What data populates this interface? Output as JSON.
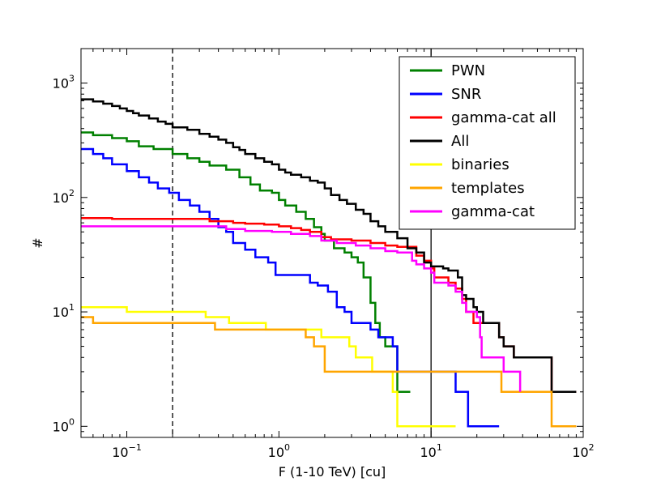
{
  "chart_data": {
    "type": "line",
    "step": true,
    "xscale": "log",
    "yscale": "log",
    "xlabel": "F (1-10 TeV) [cu]",
    "ylabel": "#",
    "xlim": [
      0.05,
      100
    ],
    "ylim": [
      0.8,
      2000
    ],
    "x_ticks": [
      {
        "base": "10",
        "exp": "−1",
        "value": 0.1
      },
      {
        "base": "10",
        "exp": "0",
        "value": 1
      },
      {
        "base": "10",
        "exp": "1",
        "value": 10
      },
      {
        "base": "10",
        "exp": "2",
        "value": 100
      }
    ],
    "y_ticks": [
      {
        "base": "10",
        "exp": "0",
        "value": 1
      },
      {
        "base": "10",
        "exp": "1",
        "value": 10
      },
      {
        "base": "10",
        "exp": "2",
        "value": 100
      },
      {
        "base": "10",
        "exp": "3",
        "value": 1000
      }
    ],
    "vlines": [
      {
        "x": 0.2,
        "style": "dashed",
        "color": "#000000"
      },
      {
        "x": 10,
        "style": "solid",
        "color": "#000000"
      }
    ],
    "legend_position": "top-right",
    "series": [
      {
        "name": "PWN",
        "color": "#008000",
        "points": [
          [
            0.05,
            370
          ],
          [
            0.06,
            350
          ],
          [
            0.08,
            330
          ],
          [
            0.1,
            310
          ],
          [
            0.12,
            280
          ],
          [
            0.15,
            265
          ],
          [
            0.2,
            240
          ],
          [
            0.25,
            220
          ],
          [
            0.3,
            205
          ],
          [
            0.35,
            190
          ],
          [
            0.45,
            175
          ],
          [
            0.55,
            150
          ],
          [
            0.65,
            130
          ],
          [
            0.75,
            115
          ],
          [
            0.9,
            110
          ],
          [
            1.0,
            95
          ],
          [
            1.1,
            85
          ],
          [
            1.3,
            75
          ],
          [
            1.5,
            65
          ],
          [
            1.7,
            55
          ],
          [
            1.9,
            48
          ],
          [
            2.0,
            42
          ],
          [
            2.3,
            36
          ],
          [
            2.7,
            33
          ],
          [
            3.0,
            30
          ],
          [
            3.3,
            27
          ],
          [
            3.6,
            20
          ],
          [
            4.0,
            12
          ],
          [
            4.3,
            8
          ],
          [
            4.6,
            6
          ],
          [
            5.0,
            5
          ],
          [
            5.7,
            5
          ],
          [
            6.0,
            2
          ],
          [
            7.3,
            2
          ]
        ]
      },
      {
        "name": "SNR",
        "color": "#0000ff",
        "points": [
          [
            0.05,
            265
          ],
          [
            0.06,
            240
          ],
          [
            0.07,
            220
          ],
          [
            0.08,
            195
          ],
          [
            0.1,
            170
          ],
          [
            0.12,
            150
          ],
          [
            0.14,
            135
          ],
          [
            0.16,
            120
          ],
          [
            0.19,
            110
          ],
          [
            0.22,
            95
          ],
          [
            0.26,
            85
          ],
          [
            0.3,
            75
          ],
          [
            0.35,
            65
          ],
          [
            0.4,
            55
          ],
          [
            0.45,
            50
          ],
          [
            0.5,
            40
          ],
          [
            0.6,
            35
          ],
          [
            0.7,
            30
          ],
          [
            0.85,
            27
          ],
          [
            0.95,
            21
          ],
          [
            1.6,
            18
          ],
          [
            1.8,
            17
          ],
          [
            2.1,
            15
          ],
          [
            2.4,
            11
          ],
          [
            2.7,
            10
          ],
          [
            3.0,
            8
          ],
          [
            4.0,
            7
          ],
          [
            4.5,
            6
          ],
          [
            5.2,
            6
          ],
          [
            5.6,
            5
          ],
          [
            6.0,
            3
          ],
          [
            14.0,
            3
          ],
          [
            14.5,
            2
          ],
          [
            17.0,
            2
          ],
          [
            17.5,
            1
          ],
          [
            28.0,
            1
          ]
        ]
      },
      {
        "name": "gamma-cat all",
        "color": "#ff0000",
        "points": [
          [
            0.05,
            66
          ],
          [
            0.08,
            65
          ],
          [
            0.2,
            65
          ],
          [
            0.35,
            62
          ],
          [
            0.5,
            60
          ],
          [
            0.6,
            59
          ],
          [
            0.8,
            58
          ],
          [
            1.0,
            56
          ],
          [
            1.2,
            54
          ],
          [
            1.4,
            52
          ],
          [
            1.6,
            50
          ],
          [
            1.9,
            45
          ],
          [
            2.2,
            43
          ],
          [
            3.0,
            42
          ],
          [
            4.0,
            40
          ],
          [
            5.0,
            38
          ],
          [
            6.0,
            37
          ],
          [
            8.0,
            31
          ],
          [
            9.0,
            28
          ],
          [
            10.0,
            24
          ],
          [
            10.5,
            20
          ],
          [
            13.0,
            18
          ],
          [
            14.5,
            16
          ],
          [
            16.0,
            13
          ],
          [
            17.0,
            10
          ],
          [
            19.0,
            8
          ],
          [
            28.0,
            6
          ],
          [
            30.0,
            5
          ],
          [
            35.0,
            4
          ],
          [
            60.0,
            4
          ],
          [
            62.0,
            2
          ],
          [
            90.0,
            2
          ]
        ]
      },
      {
        "name": "All",
        "color": "#000000",
        "points": [
          [
            0.05,
            720
          ],
          [
            0.06,
            690
          ],
          [
            0.07,
            660
          ],
          [
            0.08,
            630
          ],
          [
            0.09,
            600
          ],
          [
            0.1,
            570
          ],
          [
            0.11,
            545
          ],
          [
            0.12,
            520
          ],
          [
            0.14,
            490
          ],
          [
            0.16,
            460
          ],
          [
            0.18,
            440
          ],
          [
            0.2,
            410
          ],
          [
            0.25,
            390
          ],
          [
            0.3,
            360
          ],
          [
            0.35,
            340
          ],
          [
            0.4,
            320
          ],
          [
            0.45,
            300
          ],
          [
            0.5,
            275
          ],
          [
            0.55,
            260
          ],
          [
            0.6,
            240
          ],
          [
            0.7,
            220
          ],
          [
            0.8,
            205
          ],
          [
            0.9,
            195
          ],
          [
            1.0,
            175
          ],
          [
            1.1,
            165
          ],
          [
            1.2,
            158
          ],
          [
            1.4,
            150
          ],
          [
            1.6,
            140
          ],
          [
            1.8,
            135
          ],
          [
            2.0,
            120
          ],
          [
            2.2,
            105
          ],
          [
            2.5,
            95
          ],
          [
            2.8,
            88
          ],
          [
            3.2,
            78
          ],
          [
            3.6,
            72
          ],
          [
            4.0,
            62
          ],
          [
            4.5,
            56
          ],
          [
            5.0,
            50
          ],
          [
            6.0,
            44
          ],
          [
            7.0,
            36
          ],
          [
            8.0,
            33
          ],
          [
            9.0,
            27
          ],
          [
            10.0,
            25
          ],
          [
            11.0,
            25
          ],
          [
            12.0,
            24
          ],
          [
            13.0,
            23
          ],
          [
            15.0,
            20
          ],
          [
            16.0,
            14
          ],
          [
            17.0,
            13
          ],
          [
            19.0,
            11
          ],
          [
            20.0,
            10
          ],
          [
            22.0,
            8
          ],
          [
            28.0,
            6
          ],
          [
            30.0,
            5
          ],
          [
            35.0,
            4
          ],
          [
            60.0,
            4
          ],
          [
            62.0,
            2
          ],
          [
            90.0,
            2
          ]
        ]
      },
      {
        "name": "binaries",
        "color": "#ffff00",
        "points": [
          [
            0.05,
            11
          ],
          [
            0.1,
            10
          ],
          [
            0.33,
            9
          ],
          [
            0.47,
            8
          ],
          [
            0.8,
            8
          ],
          [
            0.82,
            7
          ],
          [
            1.4,
            7
          ],
          [
            1.9,
            6
          ],
          [
            2.9,
            5
          ],
          [
            3.2,
            4
          ],
          [
            4.1,
            3
          ],
          [
            5.6,
            2
          ],
          [
            6.0,
            1
          ],
          [
            14.5,
            1
          ]
        ]
      },
      {
        "name": "templates",
        "color": "#ffa500",
        "points": [
          [
            0.05,
            9
          ],
          [
            0.06,
            8
          ],
          [
            0.38,
            7
          ],
          [
            1.4,
            7
          ],
          [
            1.5,
            6
          ],
          [
            1.7,
            5
          ],
          [
            2.0,
            3
          ],
          [
            28.0,
            3
          ],
          [
            29.0,
            2
          ],
          [
            60.0,
            2
          ],
          [
            62.0,
            1
          ],
          [
            90.0,
            1
          ]
        ]
      },
      {
        "name": "gamma-cat",
        "color": "#ff00ff",
        "points": [
          [
            0.05,
            56
          ],
          [
            0.4,
            56
          ],
          [
            0.45,
            53
          ],
          [
            0.6,
            51
          ],
          [
            0.9,
            50
          ],
          [
            1.2,
            48
          ],
          [
            1.6,
            46
          ],
          [
            1.9,
            42
          ],
          [
            2.4,
            40
          ],
          [
            3.2,
            38
          ],
          [
            4.0,
            36
          ],
          [
            5.0,
            34
          ],
          [
            6.0,
            33
          ],
          [
            7.5,
            28
          ],
          [
            8.0,
            26
          ],
          [
            9.0,
            24
          ],
          [
            10.0,
            22
          ],
          [
            10.5,
            18
          ],
          [
            13.0,
            17
          ],
          [
            14.5,
            15
          ],
          [
            16.0,
            12
          ],
          [
            17.0,
            10
          ],
          [
            20.0,
            9
          ],
          [
            21.0,
            6
          ],
          [
            21.5,
            4
          ],
          [
            28.0,
            4
          ],
          [
            30.0,
            3
          ],
          [
            38.0,
            3
          ],
          [
            38.5,
            2
          ]
        ]
      }
    ]
  }
}
